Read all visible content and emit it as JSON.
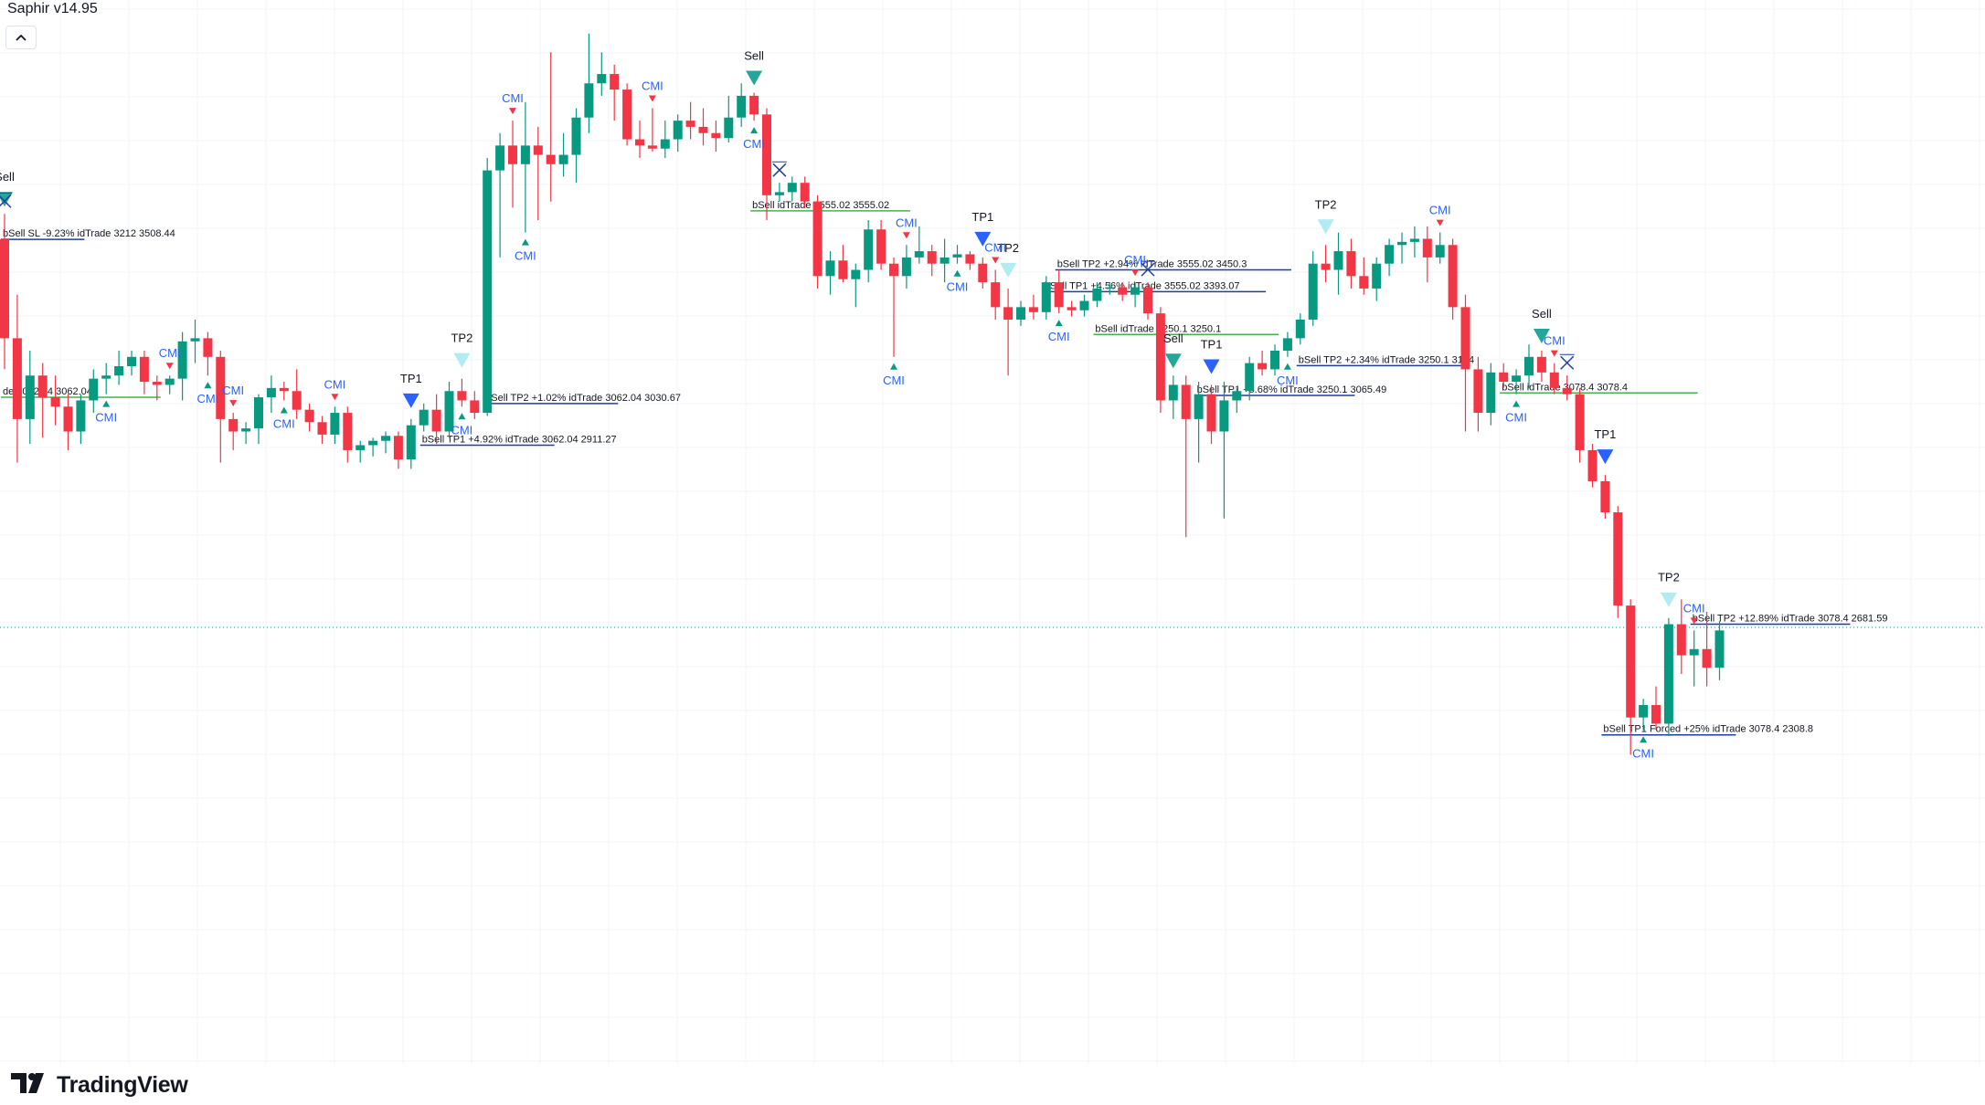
{
  "indicator": {
    "title": "Saphir v14.95"
  },
  "branding": {
    "name": "TradingView"
  },
  "colors": {
    "up": "#089981",
    "down": "#f23645",
    "tp1": "#2962ff",
    "tp2": "#b2ebf2",
    "sell_marker": "#26a69a",
    "cmi_text": "#2962ff",
    "entry_line": "#4caf50",
    "target_line": "#1e3fa0",
    "grid": "#f0f3fa",
    "text": "#131722"
  },
  "chart_data": {
    "type": "candlestick",
    "grid": true,
    "candles": [
      [
        3509,
        3550,
        3300,
        3350
      ],
      [
        3350,
        3420,
        3150,
        3220
      ],
      [
        3220,
        3330,
        3180,
        3290
      ],
      [
        3290,
        3310,
        3190,
        3255
      ],
      [
        3255,
        3290,
        3210,
        3240
      ],
      [
        3240,
        3260,
        3170,
        3200
      ],
      [
        3200,
        3260,
        3180,
        3250
      ],
      [
        3250,
        3300,
        3230,
        3285
      ],
      [
        3285,
        3310,
        3260,
        3290
      ],
      [
        3290,
        3330,
        3275,
        3305
      ],
      [
        3305,
        3330,
        3290,
        3320
      ],
      [
        3320,
        3330,
        3260,
        3280
      ],
      [
        3280,
        3290,
        3250,
        3275
      ],
      [
        3275,
        3290,
        3260,
        3285
      ],
      [
        3285,
        3360,
        3250,
        3345
      ],
      [
        3345,
        3380,
        3310,
        3350
      ],
      [
        3350,
        3360,
        3290,
        3320
      ],
      [
        3320,
        3330,
        3150,
        3220
      ],
      [
        3220,
        3230,
        3170,
        3200
      ],
      [
        3200,
        3215,
        3180,
        3205
      ],
      [
        3205,
        3260,
        3180,
        3255
      ],
      [
        3255,
        3290,
        3230,
        3270
      ],
      [
        3270,
        3280,
        3250,
        3265
      ],
      [
        3265,
        3300,
        3220,
        3235
      ],
      [
        3235,
        3245,
        3200,
        3215
      ],
      [
        3215,
        3225,
        3180,
        3195
      ],
      [
        3195,
        3240,
        3180,
        3230
      ],
      [
        3230,
        3240,
        3150,
        3170
      ],
      [
        3170,
        3185,
        3150,
        3178
      ],
      [
        3178,
        3190,
        3160,
        3185
      ],
      [
        3185,
        3200,
        3165,
        3193
      ],
      [
        3193,
        3200,
        3140,
        3155
      ],
      [
        3155,
        3220,
        3140,
        3210
      ],
      [
        3210,
        3245,
        3200,
        3235
      ],
      [
        3235,
        3260,
        3180,
        3200
      ],
      [
        3200,
        3280,
        3190,
        3265
      ],
      [
        3265,
        3285,
        3240,
        3250
      ],
      [
        3250,
        3265,
        3220,
        3230
      ],
      [
        3230,
        3640,
        3225,
        3620
      ],
      [
        3620,
        3680,
        3480,
        3660
      ],
      [
        3660,
        3700,
        3560,
        3630
      ],
      [
        3630,
        3730,
        3520,
        3660
      ],
      [
        3660,
        3690,
        3540,
        3645
      ],
      [
        3645,
        3810,
        3570,
        3630
      ],
      [
        3630,
        3680,
        3610,
        3645
      ],
      [
        3645,
        3720,
        3600,
        3705
      ],
      [
        3705,
        3840,
        3680,
        3760
      ],
      [
        3760,
        3810,
        3740,
        3775
      ],
      [
        3775,
        3790,
        3700,
        3750
      ],
      [
        3750,
        3760,
        3660,
        3670
      ],
      [
        3670,
        3700,
        3640,
        3660
      ],
      [
        3660,
        3720,
        3650,
        3655
      ],
      [
        3655,
        3700,
        3640,
        3670
      ],
      [
        3670,
        3710,
        3650,
        3700
      ],
      [
        3700,
        3730,
        3670,
        3690
      ],
      [
        3690,
        3720,
        3660,
        3680
      ],
      [
        3680,
        3700,
        3650,
        3672
      ],
      [
        3672,
        3740,
        3665,
        3705
      ],
      [
        3705,
        3760,
        3690,
        3740
      ],
      [
        3740,
        3745,
        3700,
        3710
      ],
      [
        3710,
        3720,
        3540,
        3580
      ],
      [
        3580,
        3600,
        3570,
        3585
      ],
      [
        3585,
        3610,
        3570,
        3600
      ],
      [
        3600,
        3610,
        3560,
        3570
      ],
      [
        3570,
        3580,
        3430,
        3450
      ],
      [
        3450,
        3490,
        3420,
        3475
      ],
      [
        3475,
        3500,
        3440,
        3445
      ],
      [
        3445,
        3470,
        3400,
        3460
      ],
      [
        3460,
        3540,
        3440,
        3525
      ],
      [
        3525,
        3540,
        3460,
        3470
      ],
      [
        3470,
        3480,
        3320,
        3450
      ],
      [
        3450,
        3500,
        3430,
        3480
      ],
      [
        3480,
        3530,
        3470,
        3490
      ],
      [
        3490,
        3500,
        3450,
        3470
      ],
      [
        3470,
        3510,
        3440,
        3480
      ],
      [
        3480,
        3500,
        3470,
        3485
      ],
      [
        3485,
        3490,
        3460,
        3470
      ],
      [
        3470,
        3480,
        3430,
        3440
      ],
      [
        3440,
        3460,
        3380,
        3400
      ],
      [
        3400,
        3430,
        3290,
        3380
      ],
      [
        3380,
        3410,
        3370,
        3400
      ],
      [
        3400,
        3420,
        3380,
        3392
      ],
      [
        3392,
        3450,
        3380,
        3440
      ],
      [
        3440,
        3460,
        3390,
        3400
      ],
      [
        3400,
        3410,
        3385,
        3395
      ],
      [
        3395,
        3420,
        3385,
        3410
      ],
      [
        3410,
        3440,
        3400,
        3430
      ],
      [
        3430,
        3440,
        3420,
        3432
      ],
      [
        3432,
        3440,
        3410,
        3420
      ],
      [
        3420,
        3440,
        3400,
        3432
      ],
      [
        3432,
        3440,
        3380,
        3390
      ],
      [
        3390,
        3400,
        3230,
        3250
      ],
      [
        3250,
        3290,
        3220,
        3275
      ],
      [
        3275,
        3290,
        3030,
        3220
      ],
      [
        3220,
        3280,
        3150,
        3260
      ],
      [
        3260,
        3275,
        3180,
        3200
      ],
      [
        3200,
        3280,
        3060,
        3250
      ],
      [
        3250,
        3270,
        3230,
        3265
      ],
      [
        3265,
        3320,
        3250,
        3310
      ],
      [
        3310,
        3330,
        3290,
        3300
      ],
      [
        3300,
        3340,
        3290,
        3330
      ],
      [
        3330,
        3360,
        3320,
        3350
      ],
      [
        3350,
        3390,
        3340,
        3380
      ],
      [
        3380,
        3490,
        3370,
        3470
      ],
      [
        3470,
        3500,
        3440,
        3460
      ],
      [
        3460,
        3520,
        3420,
        3490
      ],
      [
        3490,
        3510,
        3430,
        3450
      ],
      [
        3450,
        3480,
        3420,
        3430
      ],
      [
        3430,
        3480,
        3410,
        3470
      ],
      [
        3470,
        3510,
        3450,
        3500
      ],
      [
        3500,
        3520,
        3470,
        3505
      ],
      [
        3505,
        3530,
        3480,
        3510
      ],
      [
        3510,
        3530,
        3440,
        3480
      ],
      [
        3480,
        3520,
        3470,
        3500
      ],
      [
        3500,
        3510,
        3380,
        3400
      ],
      [
        3400,
        3420,
        3200,
        3300
      ],
      [
        3300,
        3320,
        3200,
        3230
      ],
      [
        3230,
        3310,
        3210,
        3295
      ],
      [
        3295,
        3310,
        3270,
        3280
      ],
      [
        3280,
        3300,
        3260,
        3290
      ],
      [
        3290,
        3340,
        3270,
        3320
      ],
      [
        3320,
        3330,
        3280,
        3295
      ],
      [
        3295,
        3310,
        3260,
        3270
      ],
      [
        3270,
        3290,
        3250,
        3260
      ],
      [
        3260,
        3270,
        3150,
        3170
      ],
      [
        3170,
        3180,
        3110,
        3120
      ],
      [
        3120,
        3130,
        3060,
        3070
      ],
      [
        3070,
        3080,
        2900,
        2920
      ],
      [
        2920,
        2930,
        2680,
        2740
      ],
      [
        2740,
        2770,
        2720,
        2760
      ],
      [
        2760,
        2790,
        2720,
        2730
      ],
      [
        2730,
        2900,
        2710,
        2890
      ],
      [
        2890,
        2930,
        2810,
        2840
      ],
      [
        2840,
        2880,
        2790,
        2850
      ],
      [
        2850,
        2910,
        2790,
        2820
      ],
      [
        2820,
        2895,
        2800,
        2880
      ]
    ],
    "markers": [
      {
        "i": 0,
        "type": "sell",
        "label": "Sell"
      },
      {
        "i": 59,
        "type": "sell",
        "label": "Sell"
      },
      {
        "i": 92,
        "type": "sell",
        "label": "Sell"
      },
      {
        "i": 121,
        "type": "sell",
        "label": "Sell"
      },
      {
        "i": 32,
        "type": "tp1",
        "label": "TP1"
      },
      {
        "i": 36,
        "type": "tp2",
        "label": "TP2"
      },
      {
        "i": 77,
        "type": "tp1",
        "label": "TP1"
      },
      {
        "i": 79,
        "type": "tp2",
        "label": "TP2"
      },
      {
        "i": 95,
        "type": "tp1",
        "label": "TP1"
      },
      {
        "i": 104,
        "type": "tp2",
        "label": "TP2"
      },
      {
        "i": 126,
        "type": "tp1",
        "label": "TP1"
      },
      {
        "i": 131,
        "type": "tp2",
        "label": "TP2"
      },
      {
        "i": 0,
        "type": "exit"
      },
      {
        "i": 61,
        "type": "exit"
      },
      {
        "i": 90,
        "type": "exit"
      },
      {
        "i": 123,
        "type": "exit"
      },
      {
        "i": 8,
        "type": "cmi_up",
        "label": "CMI"
      },
      {
        "i": 16,
        "type": "cmi_up",
        "label": "CMI"
      },
      {
        "i": 22,
        "type": "cmi_up",
        "label": "CMI"
      },
      {
        "i": 36,
        "type": "cmi_up",
        "label": "CMI"
      },
      {
        "i": 41,
        "type": "cmi_up",
        "label": "CMI"
      },
      {
        "i": 59,
        "type": "cmi_up",
        "label": "CMI"
      },
      {
        "i": 70,
        "type": "cmi_up",
        "label": "CMI"
      },
      {
        "i": 75,
        "type": "cmi_up",
        "label": "CMI"
      },
      {
        "i": 83,
        "type": "cmi_up",
        "label": "CMI"
      },
      {
        "i": 101,
        "type": "cmi_up",
        "label": "CMI"
      },
      {
        "i": 119,
        "type": "cmi_up",
        "label": "CMI"
      },
      {
        "i": 129,
        "type": "cmi_up",
        "label": "CMI"
      },
      {
        "i": 13,
        "type": "cmi_down",
        "label": "CMI"
      },
      {
        "i": 18,
        "type": "cmi_down",
        "label": "CMI"
      },
      {
        "i": 26,
        "type": "cmi_down",
        "label": "CMI"
      },
      {
        "i": 40,
        "type": "cmi_down",
        "label": "CMI"
      },
      {
        "i": 51,
        "type": "cmi_down",
        "label": "CMI"
      },
      {
        "i": 71,
        "type": "cmi_down",
        "label": "CMI"
      },
      {
        "i": 78,
        "type": "cmi_down",
        "label": "CMI"
      },
      {
        "i": 89,
        "type": "cmi_down",
        "label": "CMI"
      },
      {
        "i": 113,
        "type": "cmi_down",
        "label": "CMI"
      },
      {
        "i": 122,
        "type": "cmi_down",
        "label": "CMI"
      },
      {
        "i": 133,
        "type": "cmi_down",
        "label": "CMI"
      }
    ],
    "lines": [
      {
        "i0": 0,
        "i1": 6,
        "y": 3509,
        "type": "target",
        "label": "bSell SL -9.23% idTrade 3212 3508.44"
      },
      {
        "i0": 0,
        "i1": 12,
        "y": 3255,
        "type": "entry",
        "label": "de   3062.04 3062.04"
      },
      {
        "i0": 38,
        "i1": 48,
        "y": 3245,
        "type": "target",
        "label": "bSell TP2 +1.02% idTrade 3062.04 3030.67"
      },
      {
        "i0": 33,
        "i1": 43,
        "y": 3178,
        "type": "target",
        "label": "bSell TP1 +4.92% idTrade 3062.04 2911.27"
      },
      {
        "i0": 59,
        "i1": 71,
        "y": 3555,
        "type": "entry",
        "label": "bSell idTrade 3555.02 3555.02"
      },
      {
        "i0": 83,
        "i1": 101,
        "y": 3460,
        "type": "target",
        "label": "bSell TP2 +2.94% idTrade 3555.02 3450.3"
      },
      {
        "i0": 82,
        "i1": 99,
        "y": 3425,
        "type": "target",
        "label": "bSell TP1 +4.56% idTrade 3555.02 3393.07"
      },
      {
        "i0": 86,
        "i1": 100,
        "y": 3356,
        "type": "entry",
        "label": "bSell idTrade 3250.1 3250.1"
      },
      {
        "i0": 102,
        "i1": 115,
        "y": 3306,
        "type": "target",
        "label": "bSell TP2 +2.34% idTrade 3250.1 3174"
      },
      {
        "i0": 94,
        "i1": 106,
        "y": 3258,
        "type": "target",
        "label": "bSell TP1 +5.68% idTrade 3250.1 3065.49"
      },
      {
        "i0": 118,
        "i1": 133,
        "y": 3262,
        "type": "entry",
        "label": "bSell idTrade 3078.4 3078.4"
      },
      {
        "i0": 133,
        "i1": 145,
        "y": 2890,
        "type": "target",
        "label": "bSell TP2 +12.89% idTrade 3078.4 2681.59"
      },
      {
        "i0": 126,
        "i1": 136,
        "y": 2712,
        "type": "target",
        "label": "bSell TP1 Forced +25% idTrade 3078.4 2308.8"
      }
    ],
    "price_line": 2885
  }
}
